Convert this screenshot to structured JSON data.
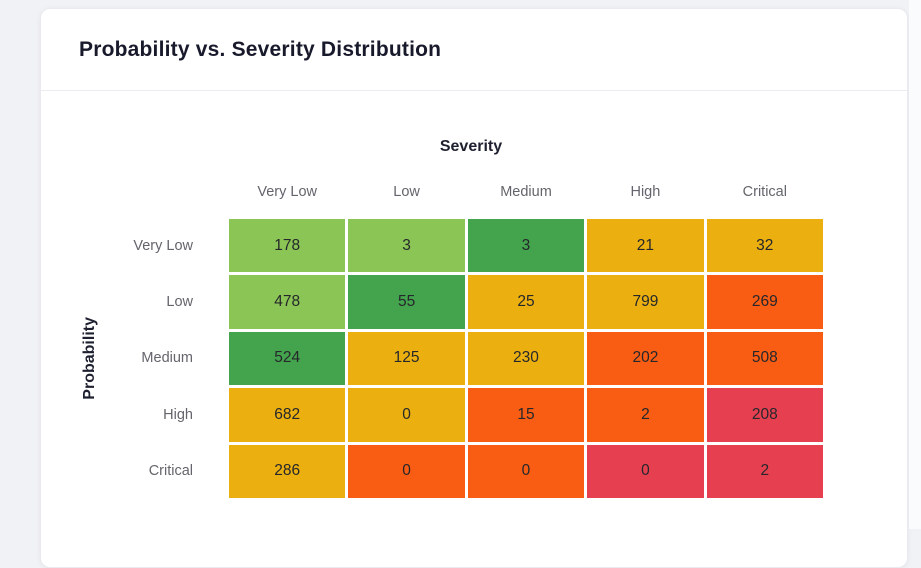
{
  "page": {
    "background": "#F1F2F6"
  },
  "card": {
    "title": "Probability vs. Severity Distribution"
  },
  "chart_data": {
    "type": "heatmap",
    "title": "Probability vs. Severity Distribution",
    "xlabel": "Severity",
    "ylabel": "Probability",
    "x_categories": [
      "Very Low",
      "Low",
      "Medium",
      "High",
      "Critical"
    ],
    "y_categories": [
      "Very Low",
      "Low",
      "Medium",
      "High",
      "Critical"
    ],
    "values": [
      [
        178,
        3,
        3,
        21,
        32
      ],
      [
        478,
        55,
        25,
        799,
        269
      ],
      [
        524,
        125,
        230,
        202,
        508
      ],
      [
        682,
        0,
        15,
        2,
        208
      ],
      [
        286,
        0,
        0,
        0,
        2
      ]
    ],
    "cell_colors": [
      [
        "light_green",
        "light_green",
        "green",
        "amber",
        "amber"
      ],
      [
        "light_green",
        "green",
        "amber",
        "amber",
        "orange"
      ],
      [
        "green",
        "amber",
        "amber",
        "orange",
        "orange"
      ],
      [
        "amber",
        "amber",
        "orange",
        "orange",
        "red"
      ],
      [
        "amber",
        "orange",
        "orange",
        "red",
        "red"
      ]
    ],
    "palette": {
      "light_green": "#8BC555",
      "green": "#43A44D",
      "amber": "#EBB010",
      "orange": "#F95D13",
      "red": "#E64050"
    },
    "value_text_color": "#26272B",
    "legend": "none",
    "grid": false
  }
}
